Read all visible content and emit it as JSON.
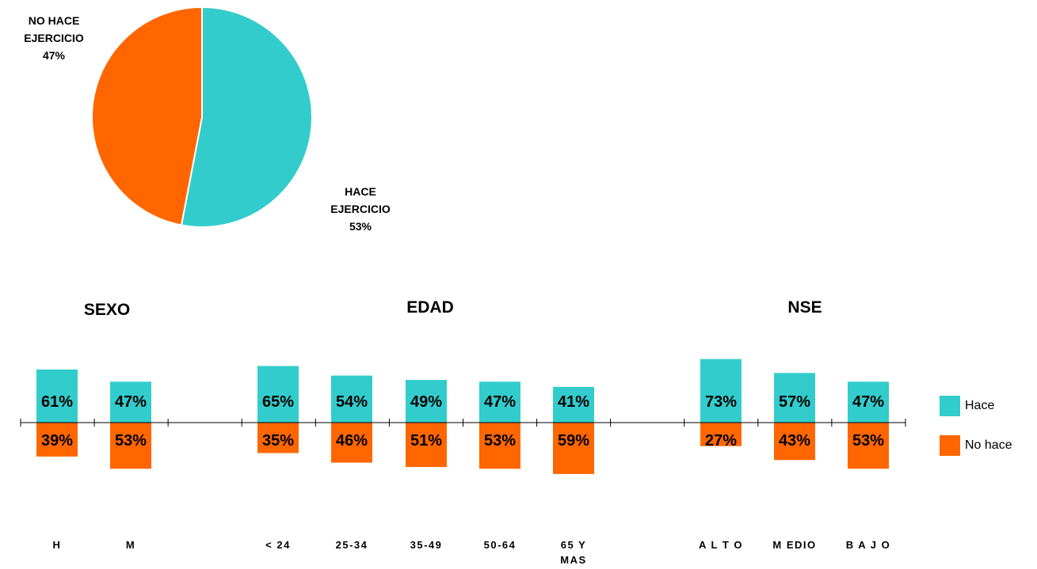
{
  "colors": {
    "hace": "#33CCCC",
    "no_hace": "#FF6600",
    "axis": "#000000"
  },
  "pie": {
    "slices": [
      {
        "label_lines": [
          "HACE",
          "EJERCICIO",
          "53%"
        ],
        "value": 53,
        "color": "#33CCCC"
      },
      {
        "label_lines": [
          "NO HACE",
          "EJERCICIO",
          "47%"
        ],
        "value": 47,
        "color": "#FF6600"
      }
    ]
  },
  "groups": [
    {
      "title": "SEXO"
    },
    {
      "title": "EDAD"
    },
    {
      "title": "NSE"
    }
  ],
  "legend": [
    {
      "label": "Hace",
      "color": "#33CCCC"
    },
    {
      "label": "No hace",
      "color": "#FF6600"
    }
  ],
  "chart_data": [
    {
      "type": "pie",
      "categories": [
        "HACE EJERCICIO",
        "NO HACE EJERCICIO"
      ],
      "values": [
        53,
        47
      ],
      "data_labels": [
        "53%",
        "47%"
      ]
    },
    {
      "type": "bar",
      "categories": [
        "H",
        "M",
        "< 24",
        "25-34",
        "35-49",
        "50-64",
        "65 Y MAS",
        "ALTO",
        "MEDIO",
        "BAJO"
      ],
      "category_labels": [
        "H",
        "M",
        "< 24",
        "25-34",
        "35-49",
        "50-64",
        "65 Y\nMAS",
        "A L T O",
        "M EDIO",
        "B A J O"
      ],
      "groups": [
        {
          "title": "SEXO",
          "categories": [
            "H",
            "M"
          ]
        },
        {
          "title": "EDAD",
          "categories": [
            "< 24",
            "25-34",
            "35-49",
            "50-64",
            "65 Y MAS"
          ]
        },
        {
          "title": "NSE",
          "categories": [
            "ALTO",
            "MEDIO",
            "BAJO"
          ]
        }
      ],
      "series": [
        {
          "name": "Hace",
          "values": [
            61,
            47,
            65,
            54,
            49,
            47,
            41,
            73,
            57,
            47
          ],
          "labels": [
            "61%",
            "47%",
            "65%",
            "54%",
            "49%",
            "47%",
            "41%",
            "73%",
            "57%",
            "47%"
          ]
        },
        {
          "name": "No hace",
          "values": [
            39,
            53,
            35,
            46,
            51,
            53,
            59,
            27,
            43,
            53
          ],
          "labels": [
            "39%",
            "53%",
            "35%",
            "46%",
            "51%",
            "53%",
            "59%",
            "27%",
            "43%",
            "53%"
          ]
        }
      ],
      "layout": "diverging (Hace above axis, No hace below axis)",
      "legend_position": "right"
    }
  ]
}
